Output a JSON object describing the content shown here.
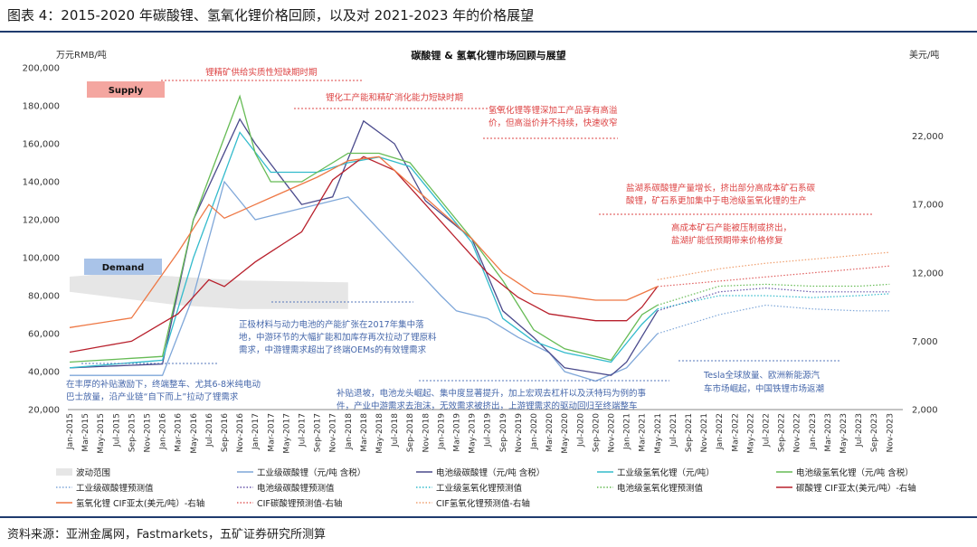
{
  "figure_title": "图表 4：2015-2020 年碳酸锂、氢氧化锂价格回顾，以及对 2021-2023 年的价格展望",
  "source": "资料来源：亚洲金属网，Fastmarkets，五矿证券研究所测算",
  "chart_data": {
    "type": "line",
    "title": "碳酸锂 & 氢氧化锂市场回顾与展望",
    "left_axis_unit": "万元RMB/吨",
    "right_axis_unit": "美元/吨",
    "ylim_left": [
      20000,
      200000
    ],
    "ylim_right": [
      2000,
      27000
    ],
    "left_ticks": [
      "200,000",
      "180,000",
      "160,000",
      "140,000",
      "120,000",
      "100,000",
      "80,000",
      "60,000",
      "40,000",
      "20,000"
    ],
    "right_ticks": [
      "22,000",
      "17,000",
      "12,000",
      "7,000",
      "2,000"
    ],
    "x_labels": [
      "Jan-2015",
      "Mar-2015",
      "May-2015",
      "Jul-2015",
      "Sep-2015",
      "Nov-2015",
      "Jan-2016",
      "Mar-2016",
      "May-2016",
      "Jul-2016",
      "Sep-2016",
      "Nov-2016",
      "Jan-2017",
      "Mar-2017",
      "May-2017",
      "Jul-2017",
      "Sep-2017",
      "Nov-2017",
      "Jan-2018",
      "Mar-2018",
      "May-2018",
      "Jul-2018",
      "Sep-2018",
      "Nov-2018",
      "Jan-2019",
      "Mar-2019",
      "May-2019",
      "Jul-2019",
      "Sep-2019",
      "Nov-2019",
      "Jan-2020",
      "Mar-2020",
      "May-2020",
      "Jul-2020",
      "Sep-2020",
      "Nov-2020",
      "Jan-2021",
      "Mar-2021",
      "May-2021",
      "Jul-2021",
      "Sep-2021",
      "Nov-2021",
      "Jan-2022",
      "Mar-2022",
      "May-2022",
      "Jul-2022",
      "Sep-2022",
      "Nov-2022",
      "Jan-2023",
      "Mar-2023",
      "May-2023",
      "Jul-2023",
      "Sep-2023",
      "Nov-2023"
    ],
    "band": {
      "label": "波动范围",
      "color": "#e6e6e6",
      "keys": [
        0,
        3,
        7,
        11,
        18
      ],
      "low": [
        82000,
        79000,
        75000,
        73000,
        73000
      ],
      "high": [
        90000,
        92000,
        90000,
        88000,
        87000
      ]
    },
    "series": [
      {
        "name": "工业级碳酸锂（元/吨 含税）",
        "color": "#7fa7d9",
        "axis": "left",
        "style": "solid",
        "keys": [
          0,
          6,
          8,
          10,
          12,
          18,
          24,
          25,
          27,
          29,
          31,
          32,
          34,
          36,
          38
        ],
        "values": [
          38000,
          38000,
          80000,
          140000,
          120000,
          132000,
          80000,
          72000,
          68000,
          58000,
          50000,
          40000,
          35000,
          42000,
          60000
        ]
      },
      {
        "name": "电池级碳酸锂（元/吨 含税）",
        "color": "#4a4a8c",
        "axis": "left",
        "style": "solid",
        "keys": [
          0,
          6,
          8,
          11,
          12,
          15,
          17,
          18,
          19,
          21,
          23,
          26,
          28,
          30,
          32,
          35,
          36,
          38
        ],
        "values": [
          42000,
          44000,
          120000,
          173000,
          160000,
          128000,
          132000,
          152000,
          172000,
          160000,
          130000,
          110000,
          72000,
          58000,
          42000,
          38000,
          45000,
          72000
        ]
      },
      {
        "name": "工业级氢氧化锂（元/吨）",
        "color": "#33bbcc",
        "axis": "left",
        "style": "solid",
        "keys": [
          0,
          6,
          8,
          11,
          13,
          16,
          18,
          20,
          22,
          24,
          26,
          28,
          30,
          32,
          35,
          37,
          38
        ],
        "values": [
          42000,
          46000,
          100000,
          166000,
          145000,
          145000,
          150000,
          153000,
          148000,
          128000,
          108000,
          68000,
          56000,
          50000,
          45000,
          65000,
          73000
        ]
      },
      {
        "name": "电池级氢氧化锂（元/吨 含税）",
        "color": "#66bb55",
        "axis": "left",
        "style": "solid",
        "keys": [
          0,
          6,
          8,
          11,
          12,
          13,
          15,
          17,
          18,
          20,
          22,
          24,
          26,
          28,
          30,
          32,
          35,
          37,
          38
        ],
        "values": [
          45000,
          48000,
          120000,
          185000,
          155000,
          140000,
          140000,
          150000,
          155000,
          155000,
          150000,
          130000,
          110000,
          88000,
          62000,
          52000,
          46000,
          70000,
          75000
        ]
      },
      {
        "name": "工业级碳酸锂预测值",
        "color": "#7fa7d9",
        "axis": "left",
        "style": "dotted",
        "keys": [
          38,
          42,
          45,
          48,
          51,
          53
        ],
        "values": [
          60000,
          70000,
          75000,
          73000,
          72000,
          72000
        ]
      },
      {
        "name": "电池级碳酸锂预测值",
        "color": "#6655aa",
        "axis": "left",
        "style": "dotted",
        "keys": [
          38,
          42,
          45,
          48,
          51,
          53
        ],
        "values": [
          72000,
          82000,
          84000,
          82000,
          82000,
          82000
        ]
      },
      {
        "name": "工业级氢氧化锂预测值",
        "color": "#33bbcc",
        "axis": "left",
        "style": "dotted",
        "keys": [
          38,
          42,
          45,
          48,
          51,
          53
        ],
        "values": [
          73000,
          80000,
          80000,
          79000,
          80000,
          81000
        ]
      },
      {
        "name": "电池级氢氧化锂预测值",
        "color": "#66bb55",
        "axis": "left",
        "style": "dotted",
        "keys": [
          38,
          42,
          45,
          48,
          51,
          53
        ],
        "values": [
          75000,
          85000,
          86000,
          85000,
          85000,
          86000
        ]
      },
      {
        "name": "碳酸锂 CIF亚太(美元/吨）-右轴",
        "color": "#b8202c",
        "axis": "right",
        "style": "solid",
        "keys": [
          0,
          4,
          7,
          9,
          10,
          12,
          15,
          17,
          19,
          21,
          23,
          25,
          27,
          29,
          31,
          34,
          36,
          37,
          38
        ],
        "values": [
          6200,
          7000,
          9000,
          11500,
          11000,
          12800,
          15000,
          18800,
          20500,
          19500,
          17000,
          14500,
          12000,
          10200,
          9000,
          8500,
          8500,
          9500,
          11000
        ]
      },
      {
        "name": "氢氧化锂 CIF亚太(美元/吨）-右轴",
        "color": "#ee7744",
        "axis": "right",
        "style": "solid",
        "keys": [
          0,
          4,
          7,
          9,
          10,
          13,
          16,
          18,
          20,
          22,
          24,
          26,
          28,
          30,
          32,
          34,
          36,
          37,
          38
        ],
        "values": [
          8000,
          8700,
          13500,
          17000,
          16000,
          17500,
          19000,
          20200,
          20500,
          18500,
          16500,
          14500,
          12000,
          10500,
          10300,
          10000,
          10000,
          10500,
          11000
        ]
      },
      {
        "name": "CIF碳酸锂预测值-右轴",
        "color": "#e06060",
        "axis": "right",
        "style": "dotted",
        "keys": [
          38,
          42,
          45,
          48,
          51,
          53
        ],
        "values": [
          11000,
          11400,
          11700,
          12000,
          12300,
          12500
        ]
      },
      {
        "name": "CIF氢氧化锂预测值-右轴",
        "color": "#f0a070",
        "axis": "right",
        "style": "dotted",
        "keys": [
          38,
          42,
          45,
          48,
          51,
          53
        ],
        "values": [
          11500,
          12300,
          12700,
          13000,
          13300,
          13500
        ]
      }
    ],
    "supply_label": "Supply",
    "demand_label": "Demand",
    "annotations": {
      "a1": "锂精矿供给实质性短缺期时期",
      "a2": "锂化工产能和精矿消化能力短缺时期",
      "a3_l1": "氢氧化锂等锂深加工产品享有高溢",
      "a3_l2": "价，但高溢价并不持续，快速收窄",
      "a4_l1": "盐湖系碳酸锂产量增长，挤出部分高成本矿石系碳",
      "a4_l2": "酸锂，矿石系更加集中于电池级氢氧化锂的生产",
      "a5_l1": "高成本矿石产能被压制或挤出，",
      "a5_l2": "盐湖扩能低预期带来价格修复",
      "a6_l1": "正极材料与动力电池的产能扩张在2017年集中落",
      "a6_l2": "地，中游环节的大幅扩能和加库存再次拉动了锂原料",
      "a6_l3": "需求，中游锂需求超出了终端OEMs的有效锂需求",
      "a7_l1": "在丰厚的补贴激励下，终端整车、尤其6-8米纯电动",
      "a7_l2": "巴士放量，沿产业链“自下而上”拉动了锂需求",
      "a8_l1": "补贴退坡，电池龙头崛起、集中度显著提升，加上宏观去杠杆以及沃特玛为例的事",
      "a8_l2": "件，产业中游需求去泡沫，无效需求被挤出，上游锂需求的驱动回归至终端整车",
      "a9_l1": "Tesla全球放量、欧洲新能源汽",
      "a9_l2": "车市场崛起，中国铁锂市场返潮"
    }
  }
}
